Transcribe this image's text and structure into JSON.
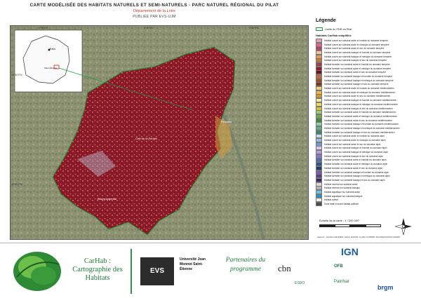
{
  "header": {
    "title": "CARTE MODÉLISÉE DES HABITATS NATURELS ET SEMI-NATURELS  -  PARC NATUREL RÉGIONAL DU PILAT",
    "subtitle": "Département de la Loire",
    "credit": "PUBLIÉE PAR EVS-UJM"
  },
  "map": {
    "coords_top": [
      "4°30'0\"E",
      "4°40'0\"E",
      "4°50'0\"E"
    ],
    "coords_left": [
      "45°30'0\"N",
      "45°20'0\"N"
    ],
    "place_labels": [
      "Pélussin",
      "Crêt de la Perdrix",
      "Bourg-Argental"
    ],
    "inset_labels": [
      "Paris",
      "Saint-Étienne"
    ]
  },
  "legend": {
    "title": "Légende",
    "perimeter_label": "Limite du PNR du Pilat",
    "subtitle": "Habitats CarHab simplifiés",
    "items": [
      {
        "label": "Habitat ouvert sur substrat acide et humide du domaine tempéré",
        "color": "#e8a5b8"
      },
      {
        "label": "Habitat ouvert sur substrat acide et mésique du domaine tempéré",
        "color": "#d86a8f"
      },
      {
        "label": "Habitat ouvert sur substrat acide et sec du domaine tempéré",
        "color": "#b8426a"
      },
      {
        "label": "Habitat ouvert sur substrat basique et humide du domaine tempéré",
        "color": "#f1c39b"
      },
      {
        "label": "Habitat ouvert sur substrat basique et mésique du domaine tempéré",
        "color": "#e39a5b"
      },
      {
        "label": "Habitat ouvert sur substrat basique et sec du domaine tempéré",
        "color": "#c97a2f"
      },
      {
        "label": "Habitat forestier sur substrat acide et humide du domaine tempéré",
        "color": "#a23b4f"
      },
      {
        "label": "Habitat forestier sur substrat acide et mésique du domaine tempéré",
        "color": "#8c1f2e"
      },
      {
        "label": "Habitat forestier sur substrat acide et sec du domaine tempéré",
        "color": "#6e1420"
      },
      {
        "label": "Habitat forestier sur substrat basique et humide du domaine tempéré",
        "color": "#c06a3a"
      },
      {
        "label": "Habitat forestier sur substrat basique et mésique du domaine tempéré",
        "color": "#a04f28"
      },
      {
        "label": "Habitat forestier sur substrat basique et sec du domaine tempéré",
        "color": "#7a3a1c"
      },
      {
        "label": "Habitat ouvert sur substrat acide et humide du domaine méditerranéen",
        "color": "#f4d27a"
      },
      {
        "label": "Habitat ouvert sur substrat acide et mésique du domaine méditerranéen",
        "color": "#e8b84a"
      },
      {
        "label": "Habitat ouvert sur substrat acide et sec du domaine méditerranéen",
        "color": "#cf9a20"
      },
      {
        "label": "Habitat ouvert sur substrat basique et humide du domaine méditerranéen",
        "color": "#f7e9a0"
      },
      {
        "label": "Habitat ouvert sur substrat basique et mésique du domaine méditerranéen",
        "color": "#eadb6a"
      },
      {
        "label": "Habitat ouvert sur substrat basique et sec du domaine méditerranéen",
        "color": "#d4c23a"
      },
      {
        "label": "Habitat forestier sur substrat acide et humide du domaine méditerranéen",
        "color": "#9ccb7a"
      },
      {
        "label": "Habitat forestier sur substrat acide et mésique du domaine méditerranéen",
        "color": "#6fae4c"
      },
      {
        "label": "Habitat forestier sur substrat acide et sec du domaine méditerranéen",
        "color": "#4a8a2e"
      },
      {
        "label": "Habitat forestier sur substrat basique et humide du domaine méditerranéen",
        "color": "#8fd0b0"
      },
      {
        "label": "Habitat forestier sur substrat basique et mésique du domaine méditerranéen",
        "color": "#5fb08e"
      },
      {
        "label": "Habitat forestier sur substrat basique et sec du domaine méditerranéen",
        "color": "#3a8a6a"
      },
      {
        "label": "Habitat ouvert sur substrat acide et humide du domaine alpin",
        "color": "#c9d9f0"
      },
      {
        "label": "Habitat ouvert sur substrat acide et mésique du domaine alpin",
        "color": "#9fbde3"
      },
      {
        "label": "Habitat ouvert sur substrat acide et sec du domaine alpin",
        "color": "#6f9bd1"
      },
      {
        "label": "Habitat ouvert sur substrat basique et humide du domaine alpin",
        "color": "#d8c9ec"
      },
      {
        "label": "Habitat ouvert sur substrat basique et mésique du domaine alpin",
        "color": "#b79fdc"
      },
      {
        "label": "Habitat ouvert sur substrat basique et sec du domaine alpin",
        "color": "#9175c6"
      },
      {
        "label": "Habitat forestier sur substrat acide et humide du domaine alpin",
        "color": "#4a6fa8"
      },
      {
        "label": "Habitat forestier sur substrat acide et mésique du domaine alpin",
        "color": "#30538c"
      },
      {
        "label": "Habitat forestier sur substrat acide et sec du domaine alpin",
        "color": "#1e3a6a"
      },
      {
        "label": "Habitat forestier sur substrat basique et humide du domaine alpin",
        "color": "#7a5aa8"
      },
      {
        "label": "Habitat forestier sur substrat basique et mésique du domaine alpin",
        "color": "#5a3e8a"
      },
      {
        "label": "Habitat forestier sur substrat basique et sec du domaine alpin",
        "color": "#3e2668"
      },
      {
        "label": "Habitat minéral sur substrat acide",
        "color": "#d9d9d9"
      },
      {
        "label": "Habitat minéral sur substrat basique",
        "color": "#b3b3b3"
      },
      {
        "label": "Habitat aquatique sur substrat acide",
        "color": "#6fc3e8"
      },
      {
        "label": "Habitat aquatique sur substrat basique",
        "color": "#2f8fc9"
      },
      {
        "label": "Habitat cultivé",
        "color": "#f5f0d8"
      },
      {
        "label": "Zone bâtie et autre habitat artificiel",
        "color": "#4d4d4d"
      }
    ]
  },
  "scale": {
    "label": "Échelle de la carte : 1 / 200 000°",
    "ticks": [
      "0",
      "2,5",
      "5",
      "10",
      "15",
      "20 km"
    ]
  },
  "authors": "Auteurs : Aurélien FEUNER, Céline GADSA, Cyrille CONORD, Rina BALTHAYE-GOUEX",
  "footer": {
    "carhab_title": "CarHab : Cartographie des Habitats",
    "partners_title": "Partenaires du programme",
    "logos": [
      "EVS",
      "Université Jean Monnet Saint-Étienne",
      "cbn",
      "IGN",
      "OFB",
      "ESDO",
      "PatriNat",
      "brgm"
    ]
  },
  "colors": {
    "forest_red": "#8c1a26",
    "accent_green": "#1e7d3a",
    "perimeter_green": "#1a9b3c"
  }
}
